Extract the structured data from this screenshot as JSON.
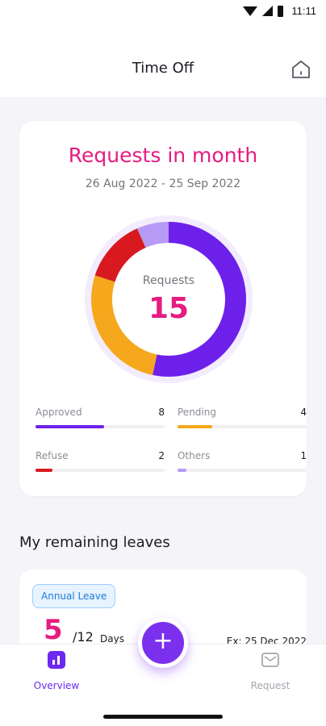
{
  "status_bar": {
    "time": "11:11"
  },
  "header": {
    "title": "Time Off",
    "home_icon": "home-icon"
  },
  "summary": {
    "title": "Requests in month",
    "date_range": "26 Aug 2022 - 25 Sep 2022",
    "center_label": "Requests",
    "total": "15",
    "stats": [
      {
        "label": "Approved",
        "value": "8",
        "color": "#6d20ea"
      },
      {
        "label": "Pending",
        "value": "4",
        "color": "#f5a81b"
      },
      {
        "label": "Refuse",
        "value": "2",
        "color": "#d8191f"
      },
      {
        "label": "Others",
        "value": "1",
        "color": "#b69af5"
      }
    ],
    "colors": {
      "track": "#f0eff3",
      "halo": "#f3ecfe"
    }
  },
  "remaining": {
    "title": "My remaining leaves",
    "leave_type": "Annual Leave",
    "remaining_days": "5",
    "total_days": "/12",
    "unit": "Days",
    "expiry": "Ex: 25 Dec 2022"
  },
  "nav": {
    "overview_label": "Overview",
    "request_label": "Request",
    "fab_label": "+"
  },
  "colors": {
    "accent": "#e51c82",
    "primary": "#6d28f0"
  }
}
